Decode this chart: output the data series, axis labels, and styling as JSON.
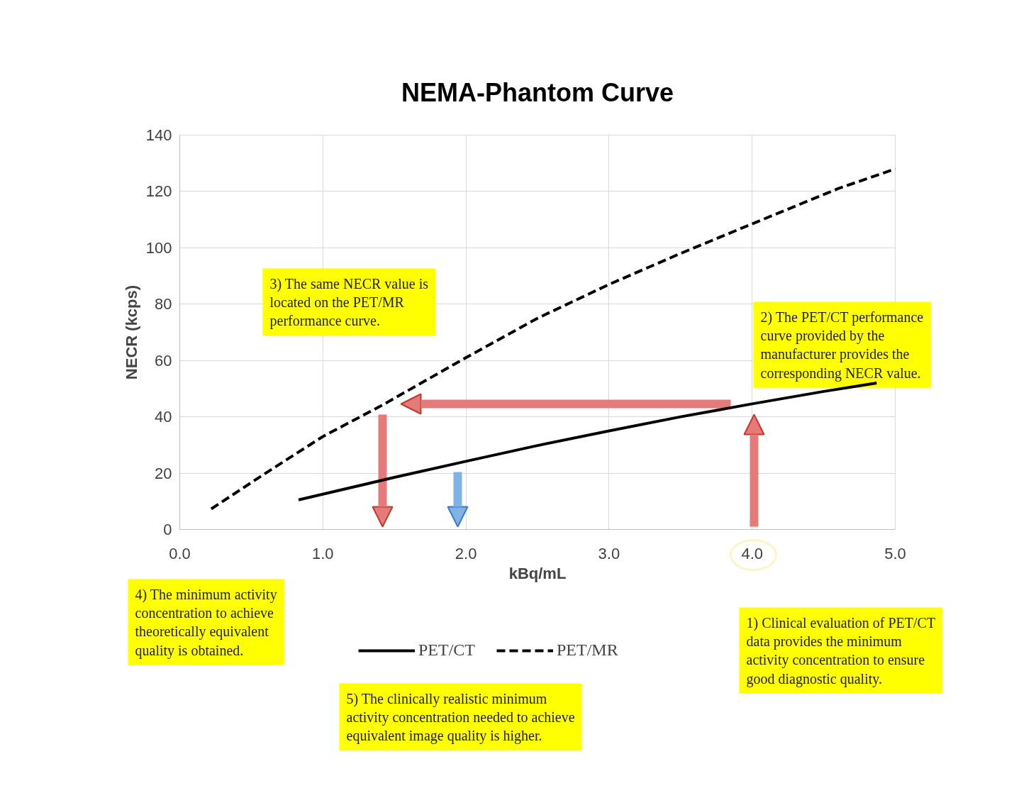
{
  "chart_data": {
    "type": "line",
    "title": "NEMA-Phantom Curve",
    "xlabel": "kBq/mL",
    "ylabel": "NECR (kcps)",
    "xlim": [
      0,
      5
    ],
    "ylim": [
      0,
      140
    ],
    "xticks": [
      {
        "value": 0,
        "label": "0.0"
      },
      {
        "value": 1,
        "label": "1.0"
      },
      {
        "value": 2,
        "label": "2.0"
      },
      {
        "value": 3,
        "label": "3.0"
      },
      {
        "value": 4,
        "label": "4.0"
      },
      {
        "value": 5,
        "label": "5.0"
      }
    ],
    "yticks": [
      0,
      20,
      40,
      60,
      80,
      100,
      120,
      140
    ],
    "grid": true,
    "legend": "bottom",
    "series": [
      {
        "name": "PET/CT",
        "color": "#000000",
        "line_style": "solid",
        "x": [
          0.83,
          1.5,
          2.0,
          2.5,
          3.0,
          3.5,
          4.0,
          4.5,
          4.87
        ],
        "values": [
          10.5,
          18.5,
          24.2,
          29.8,
          35,
          40,
          44.6,
          49,
          52
        ]
      },
      {
        "name": "PET/MR",
        "color": "#000000",
        "line_style": "dashed",
        "x": [
          0.22,
          0.6,
          1.0,
          1.41,
          2.0,
          2.5,
          3.0,
          3.5,
          4.0,
          4.6,
          5.0
        ],
        "values": [
          7.3,
          20,
          33,
          44,
          61,
          75,
          87,
          98,
          108.5,
          121,
          128
        ]
      }
    ],
    "annotations": [
      "1) Clinical evaluation of PET/CT data provides the minimum activity concentration to ensure good diagnostic quality.",
      "2) The PET/CT performance curve provided by the manufacturer provides the corresponding NECR value.",
      "3) The same NECR value is located on the PET/MR performance curve.",
      "4) The minimum activity concentration to achieve theoretically equivalent quality is obtained.",
      "5) The clinically realistic minimum activity concentration needed to achieve equivalent image quality is higher."
    ]
  }
}
